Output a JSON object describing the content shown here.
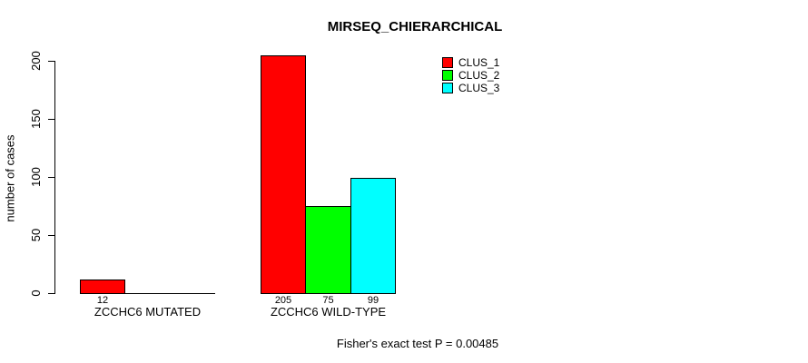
{
  "chart_data": {
    "type": "bar",
    "title": "MIRSEQ_CHIERARCHICAL",
    "xlabel": "",
    "ylabel": "number of cases",
    "categories": [
      "ZCCHC6 MUTATED",
      "ZCCHC6 WILD-TYPE"
    ],
    "series": [
      {
        "name": "CLUS_1",
        "color": "#ff0000",
        "values": [
          12,
          205
        ]
      },
      {
        "name": "CLUS_2",
        "color": "#00ff00",
        "values": [
          0,
          75
        ]
      },
      {
        "name": "CLUS_3",
        "color": "#00ffff",
        "values": [
          0,
          99
        ]
      }
    ],
    "bar_value_labels": [
      [
        "12",
        null,
        null
      ],
      [
        "205",
        "75",
        "99"
      ]
    ],
    "ylim": [
      0,
      200
    ],
    "yticks": [
      0,
      50,
      100,
      150,
      200
    ],
    "grid": false,
    "legend_position": "top-right",
    "legend_entries": [
      "CLUS_1",
      "CLUS_2",
      "CLUS_3"
    ],
    "annotation": "Fisher's exact test P = 0.00485",
    "colors": {
      "background": "#ffffff",
      "axis": "#000000",
      "text": "#000000"
    }
  }
}
